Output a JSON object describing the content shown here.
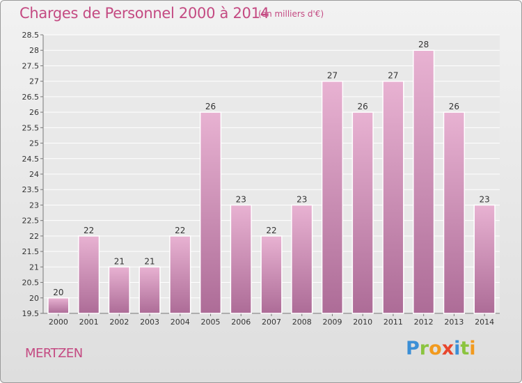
{
  "header": {
    "title": "Charges de Personnel 2000 à 2014",
    "subtitle": "(en milliers d'€)"
  },
  "footer": {
    "commune": "MERTZEN",
    "logo_letters": [
      "P",
      "r",
      "o",
      "x",
      "i",
      "t",
      "i"
    ],
    "logo_colors": [
      "#3b8fd6",
      "#8bc43f",
      "#f29a1e",
      "#e8462d",
      "#3b8fd6",
      "#8bc43f",
      "#f29a1e"
    ]
  },
  "chart_data": {
    "type": "bar",
    "title": "Charges de Personnel 2000 à 2014",
    "subtitle": "(en milliers d'€)",
    "xlabel": "",
    "ylabel": "",
    "categories": [
      "2000",
      "2001",
      "2002",
      "2003",
      "2004",
      "2005",
      "2006",
      "2007",
      "2008",
      "2009",
      "2010",
      "2011",
      "2012",
      "2013",
      "2014"
    ],
    "values": [
      20,
      22,
      21,
      21,
      22,
      26,
      23,
      22,
      23,
      27,
      26,
      27,
      28,
      26,
      23
    ],
    "data_labels": [
      "20",
      "22",
      "21",
      "21",
      "22",
      "26",
      "23",
      "22",
      "23",
      "27",
      "26",
      "27",
      "28",
      "26",
      "23"
    ],
    "ylim": [
      19.5,
      28.5
    ],
    "yticks": [
      "19.5",
      "20",
      "20.5",
      "21",
      "21.5",
      "22",
      "22.5",
      "23",
      "23.5",
      "24",
      "24.5",
      "25",
      "25.5",
      "26",
      "26.5",
      "27",
      "27.5",
      "28",
      "28.5"
    ],
    "grid": true,
    "bar_color": "#d88cb6",
    "legend": "none"
  }
}
